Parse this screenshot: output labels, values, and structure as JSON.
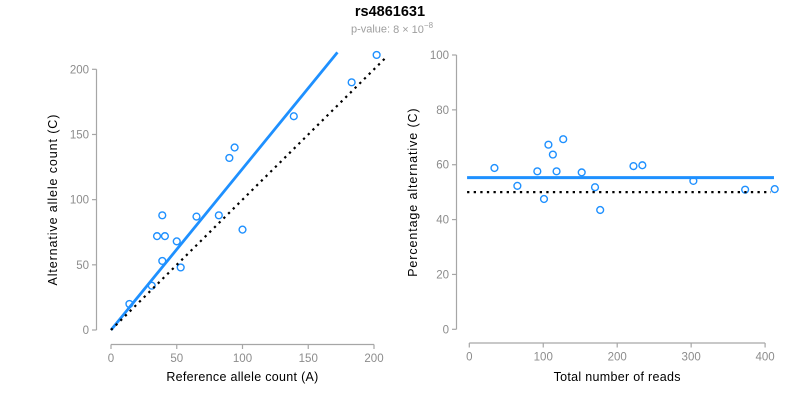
{
  "title": "rs4861631",
  "subtitle": {
    "prefix": "p-value:",
    "mantissa": "8",
    "times": "×",
    "base": "10",
    "exponent": "−8"
  },
  "colors": {
    "accent_blue": "#1E90FF",
    "dotted_black": "#000000",
    "axis_gray": "#A6A6A6",
    "tick_label_gray": "#8C8C8C",
    "axis_title_black": "#000000",
    "subtitle_gray": "#9E9E9E"
  },
  "chart_data": [
    {
      "type": "scatter",
      "panel": "left",
      "xlabel": "Reference allele count (A)",
      "ylabel": "Alternative allele count (C)",
      "xticks": [
        0,
        50,
        100,
        150,
        200
      ],
      "yticks": [
        0,
        50,
        100,
        150,
        200
      ],
      "xlim": [
        0,
        209
      ],
      "ylim": [
        0,
        213
      ],
      "point_color": "#1E90FF",
      "points": [
        [
          14,
          20
        ],
        [
          31,
          34
        ],
        [
          35,
          72
        ],
        [
          39,
          53
        ],
        [
          39,
          88
        ],
        [
          41,
          72
        ],
        [
          50,
          68
        ],
        [
          53,
          48
        ],
        [
          65,
          87
        ],
        [
          82,
          88
        ],
        [
          90,
          132
        ],
        [
          94,
          140
        ],
        [
          100,
          77
        ],
        [
          139,
          164
        ],
        [
          183,
          190
        ],
        [
          202,
          211
        ]
      ],
      "lines": [
        {
          "name": "fit-line",
          "slope": 1.237,
          "intercept": 0,
          "x_range": [
            0,
            172.2
          ],
          "style": "solid",
          "color": "#1E90FF",
          "width": 2.8
        },
        {
          "name": "identity-line",
          "slope": 1,
          "intercept": 0,
          "x_range": [
            0,
            209
          ],
          "style": "dotted",
          "color": "#000000",
          "width": 2.2
        }
      ]
    },
    {
      "type": "scatter",
      "panel": "right",
      "xlabel": "Total number of reads",
      "ylabel": "Percentage alternative (C)",
      "xticks": [
        0,
        100,
        200,
        300,
        400
      ],
      "yticks": [
        0,
        20,
        40,
        60,
        80,
        100
      ],
      "xlim": [
        0,
        413
      ],
      "ylim": [
        0,
        100
      ],
      "point_color": "#1E90FF",
      "points": [
        [
          34,
          58.8
        ],
        [
          65,
          52.3
        ],
        [
          107,
          67.3
        ],
        [
          92,
          57.6
        ],
        [
          127,
          69.3
        ],
        [
          113,
          63.7
        ],
        [
          118,
          57.6
        ],
        [
          101,
          47.5
        ],
        [
          152,
          57.2
        ],
        [
          170,
          51.8
        ],
        [
          222,
          59.5
        ],
        [
          234,
          59.8
        ],
        [
          177,
          43.5
        ],
        [
          303,
          54.1
        ],
        [
          373,
          50.9
        ],
        [
          413,
          51.1
        ]
      ],
      "lines": [
        {
          "name": "mean-line",
          "slope": 0,
          "intercept": 55.3,
          "x_range": [
            -3,
            412
          ],
          "style": "solid",
          "color": "#1E90FF",
          "width": 3
        },
        {
          "name": "null-line",
          "slope": 0,
          "intercept": 50,
          "x_range": [
            -3,
            408
          ],
          "style": "dotted",
          "color": "#000000",
          "width": 2.2
        }
      ]
    }
  ]
}
